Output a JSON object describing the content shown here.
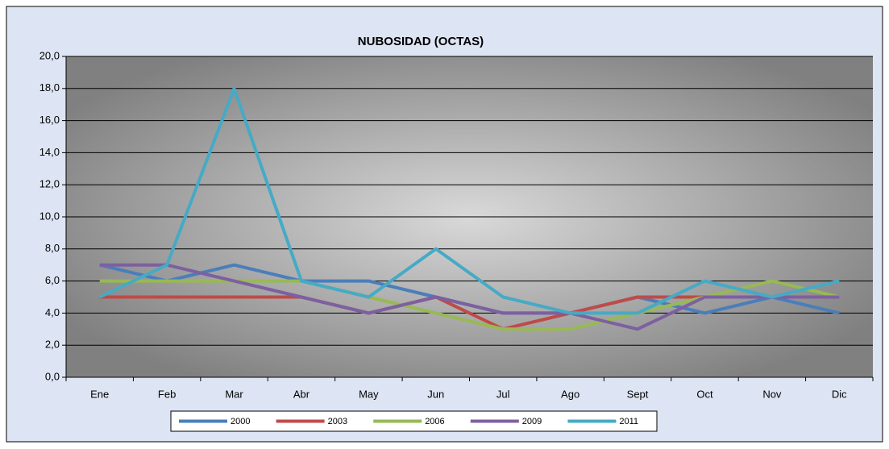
{
  "chart_data": {
    "type": "line",
    "title": "NUBOSIDAD  (OCTAS)",
    "categories": [
      "Ene",
      "Feb",
      "Mar",
      "Abr",
      "May",
      "Jun",
      "Jul",
      "Ago",
      "Sept",
      "Oct",
      "Nov",
      "Dic"
    ],
    "series": [
      {
        "name": "2000",
        "color": "#4a7ebb",
        "values": [
          7,
          6,
          7,
          6,
          6,
          5,
          4,
          4,
          5,
          4,
          5,
          4
        ]
      },
      {
        "name": "2003",
        "color": "#be4b48",
        "values": [
          5,
          5,
          5,
          5,
          4,
          5,
          3,
          4,
          5,
          5,
          5,
          5
        ]
      },
      {
        "name": "2006",
        "color": "#98b954",
        "values": [
          6,
          6,
          6,
          6,
          5,
          4,
          3,
          3,
          4,
          5,
          6,
          5
        ]
      },
      {
        "name": "2009",
        "color": "#7d60a0",
        "values": [
          7,
          7,
          6,
          5,
          4,
          5,
          4,
          4,
          3,
          5,
          5,
          5
        ]
      },
      {
        "name": "2011",
        "color": "#46aac5",
        "values": [
          5,
          7,
          18,
          6,
          5,
          8,
          5,
          4,
          4,
          6,
          5,
          6
        ]
      }
    ],
    "ylim": [
      0,
      20
    ],
    "yticks": [
      {
        "value": 0,
        "label": "0,0"
      },
      {
        "value": 2,
        "label": "2,0"
      },
      {
        "value": 4,
        "label": "4,0"
      },
      {
        "value": 6,
        "label": "6,0"
      },
      {
        "value": 8,
        "label": "8,0"
      },
      {
        "value": 10,
        "label": "10,0"
      },
      {
        "value": 12,
        "label": "12,0"
      },
      {
        "value": 14,
        "label": "14,0"
      },
      {
        "value": 16,
        "label": "16,0"
      },
      {
        "value": 18,
        "label": "18,0"
      },
      {
        "value": 20,
        "label": "20,0"
      }
    ],
    "grid": true,
    "legend": "bottom"
  }
}
